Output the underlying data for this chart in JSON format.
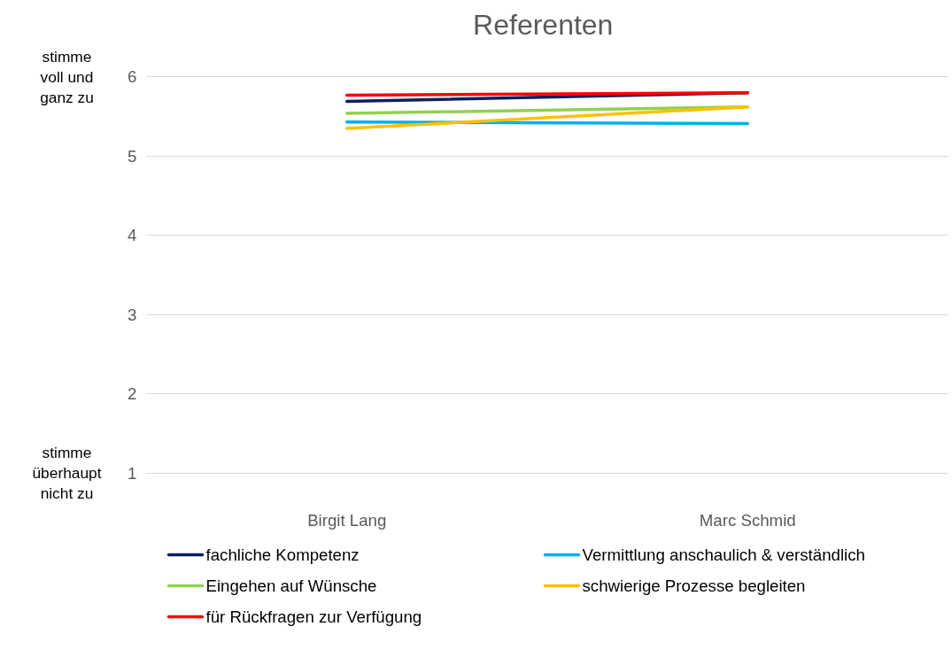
{
  "chart_data": {
    "type": "line",
    "title": "Referenten",
    "categories": [
      "Birgit Lang",
      "Marc Schmid"
    ],
    "series": [
      {
        "name": "fachliche Kompetenz",
        "color": "#0d1f5c",
        "values": [
          5.69,
          5.8
        ]
      },
      {
        "name": "Vermittlung anschaulich & verständlich",
        "color": "#00b0f0",
        "values": [
          5.43,
          5.41
        ]
      },
      {
        "name": "Eingehen auf Wünsche",
        "color": "#92d050",
        "values": [
          5.54,
          5.62
        ]
      },
      {
        "name": "schwierige Prozesse begleiten",
        "color": "#ffc000",
        "values": [
          5.35,
          5.62
        ]
      },
      {
        "name": "für Rückfragen zur Verfügung",
        "color": "#ff0000",
        "values": [
          5.77,
          5.8
        ]
      }
    ],
    "ylim": [
      1,
      6
    ],
    "yticks": [
      1,
      2,
      3,
      4,
      5,
      6
    ],
    "annotations": [
      "stimme voll und ganz zu",
      "stimme überhaupt nicht zu"
    ],
    "grid": "y",
    "legend": "bottom",
    "marker": "none",
    "line_style": "solid"
  }
}
